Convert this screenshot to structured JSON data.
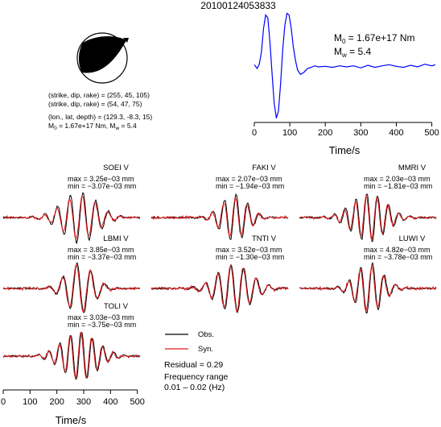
{
  "title": "20100124053833",
  "mechanism": {
    "plane1": "(strike, dip, rake) = (255, 45, 105)",
    "plane2": "(strike, dip, rake) = (54, 47, 75)",
    "location": "(lon., lat, depth) = (129.3, -8.3, 15)",
    "m0_prefix": "M",
    "m0_sub": "0",
    "m0_rest": " = 1.67e+17 Nm, M",
    "mw_sub": "w",
    "mw_rest": " = 5.4"
  },
  "stf": {
    "m0_label": "M",
    "m0_sub": "0",
    "m0_value": " = 1.67e+17 Nm",
    "mw_label": "M",
    "mw_sub": "w",
    "mw_value": " = 5.4",
    "xlabel": "Time/s"
  },
  "legend": {
    "obs_label": "Obs.",
    "syn_label": "Syn.",
    "residual": "Residual = 0.29",
    "freq_title": "Frequency range",
    "freq_value": "0.01 – 0.02 (Hz)"
  },
  "colors": {
    "obs": "#000000",
    "syn": "#e31a1c",
    "stf": "#0000ff"
  },
  "chart_data": [
    {
      "type": "line",
      "name": "source-time-function",
      "xlabel": "Time/s",
      "xlim": [
        0,
        510
      ],
      "xticks": [
        0,
        100,
        200,
        300,
        400,
        500
      ],
      "ylim": [
        -1.0,
        1.05
      ],
      "series": [
        {
          "x": [
            0,
            8,
            14,
            20,
            26,
            32,
            38,
            44,
            50,
            56,
            62,
            68,
            74,
            80,
            86,
            92,
            98,
            104,
            110,
            116,
            122,
            130,
            140,
            150,
            160,
            170,
            180,
            200,
            220,
            240,
            260,
            280,
            300,
            320,
            340,
            360,
            380,
            400,
            420,
            440,
            460,
            480,
            500,
            510
          ],
          "y": [
            0.02,
            -0.05,
            0.03,
            0.25,
            0.7,
            0.95,
            0.9,
            0.45,
            -0.15,
            -0.7,
            -0.98,
            -0.85,
            -0.35,
            0.3,
            0.75,
            0.98,
            0.95,
            0.7,
            0.35,
            0.1,
            -0.08,
            -0.16,
            -0.12,
            -0.05,
            -0.03,
            0.0,
            -0.02,
            -0.01,
            -0.03,
            0.0,
            -0.02,
            0.0,
            -0.04,
            0.01,
            -0.03,
            0.0,
            0.02,
            -0.01,
            -0.03,
            0.01,
            -0.02,
            0.03,
            0.0,
            0.02
          ]
        }
      ]
    },
    {
      "type": "line",
      "name": "waveform-fits",
      "xlabel": "Time/s",
      "xlim": [
        0,
        510
      ],
      "xticks": [
        0,
        100,
        200,
        300,
        400,
        500
      ],
      "series": [
        "Obs.",
        "Syn."
      ],
      "stations": [
        {
          "station": "SOEI V",
          "max": "max = 3.25e−03 mm",
          "min": "min = −3.07e−03 mm",
          "seed": 1,
          "amp_obs": 1.0,
          "amp_syn": 0.85
        },
        {
          "station": "FAKI V",
          "max": "max = 2.07e−03 mm",
          "min": "min = −1.94e−03 mm",
          "seed": 2,
          "amp_obs": 0.9,
          "amp_syn": 0.8
        },
        {
          "station": "MMRI V",
          "max": "max = 2.03e−03 mm",
          "min": "min = −1.81e−03 mm",
          "seed": 3,
          "amp_obs": 0.95,
          "amp_syn": 0.85
        },
        {
          "station": "LBMI V",
          "max": "max = 3.85e−03 mm",
          "min": "min = −3.37e−03 mm",
          "seed": 4,
          "amp_obs": 1.0,
          "amp_syn": 0.95
        },
        {
          "station": "TNTI V",
          "max": "max = 3.52e−03 mm",
          "min": "min = −1.30e−03 mm",
          "seed": 5,
          "amp_obs": 0.95,
          "amp_syn": 0.9
        },
        {
          "station": "LUWI V",
          "max": "max = 4.82e−03 mm",
          "min": "min = −3.78e−03 mm",
          "seed": 6,
          "amp_obs": 1.0,
          "amp_syn": 0.9
        },
        {
          "station": "TOLI V",
          "max": "max = 3.03e−03 mm",
          "min": "min = −3.75e−03 mm",
          "seed": 7,
          "amp_obs": 0.95,
          "amp_syn": 0.9
        }
      ]
    }
  ]
}
